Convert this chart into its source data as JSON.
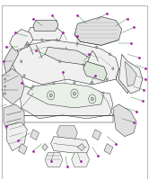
{
  "bg_color": "#ffffff",
  "line_color": "#2a2a2a",
  "leader_color": "#2d7a2d",
  "callout_color": "#aa22aa",
  "fill_light": "#f0f0f0",
  "fill_mid": "#e0e0e0",
  "fill_dark": "#d0d0d0",
  "fill_green": "#e8f0e8",
  "fig_width": 1.66,
  "fig_height": 2.0,
  "dpi": 100
}
